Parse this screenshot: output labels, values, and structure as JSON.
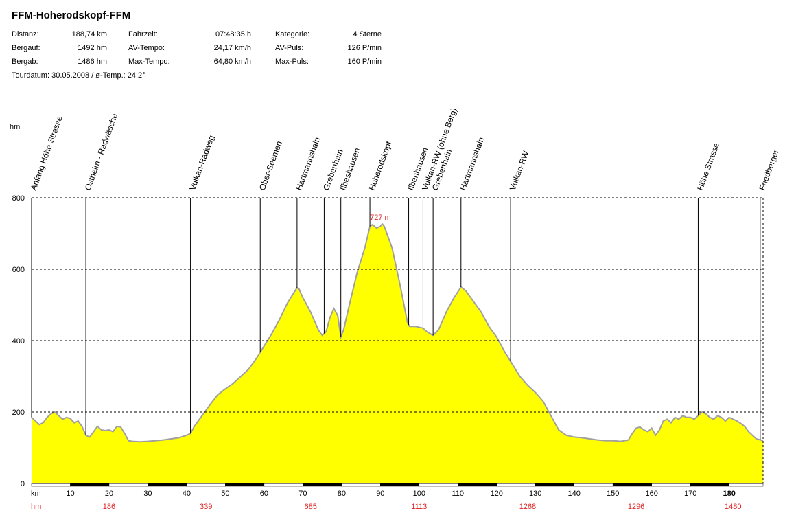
{
  "title": "FFM-Hoherodskopf-FFM",
  "stats": [
    {
      "label": "Distanz:",
      "value": "188,74 km"
    },
    {
      "label": "Bergauf:",
      "value": "1492 hm"
    },
    {
      "label": "Bergab:",
      "value": "1486 hm"
    },
    {
      "label": "Fahrzeit:",
      "value": "07:48:35 h"
    },
    {
      "label": "AV-Tempo:",
      "value": "24,17 km/h"
    },
    {
      "label": "Max-Tempo:",
      "value": "64,80 km/h"
    },
    {
      "label": "Kategorie:",
      "value": "4 Sterne"
    },
    {
      "label": "AV-Puls:",
      "value": "126 P/min"
    },
    {
      "label": "Max-Puls:",
      "value": "160 P/min"
    }
  ],
  "tour_line": "Tourdatum: 30.05.2008  /  ø-Temp.: 24,2°",
  "colors": {
    "fill": "#ffff00",
    "outline": "#a0a0a0",
    "accent": "#e02020",
    "axis": "#000000"
  },
  "chart_data": {
    "type": "area",
    "ylabel": "hm",
    "xlabel": "km",
    "xlim": [
      0,
      188.74
    ],
    "ylim": [
      0,
      800
    ],
    "y_ticks": [
      0,
      200,
      400,
      600,
      800
    ],
    "x_ticks": [
      10,
      20,
      30,
      40,
      50,
      60,
      70,
      80,
      90,
      100,
      110,
      120,
      130,
      140,
      150,
      160,
      170,
      180
    ],
    "x_tick_labels": [
      "10",
      "20",
      "30",
      "40",
      "50",
      "60",
      "70",
      "80",
      "90",
      "100",
      "110",
      "120",
      "130",
      "140",
      "150",
      "160",
      "170",
      "180"
    ],
    "x_bold_label": "180",
    "grid": "horizontal-dashed",
    "cumulative_ascent": [
      {
        "km": 20,
        "label": "186"
      },
      {
        "km": 45,
        "label": "339"
      },
      {
        "km": 72,
        "label": "685"
      },
      {
        "km": 100,
        "label": "1113"
      },
      {
        "km": 128,
        "label": "1268"
      },
      {
        "km": 156,
        "label": "1296"
      },
      {
        "km": 181,
        "label": "1480"
      }
    ],
    "max_label": {
      "km": 90.5,
      "elev": 727,
      "text": "727 m"
    },
    "landmarks": [
      {
        "km": 0,
        "name": "Anfang Höhe Strasse"
      },
      {
        "km": 14,
        "name": "Ostheim - Radwäsche"
      },
      {
        "km": 41,
        "name": "Vulkan-Radweg"
      },
      {
        "km": 59,
        "name": "Ober-Seemen"
      },
      {
        "km": 68.5,
        "name": "Hartmannshain"
      },
      {
        "km": 75.5,
        "name": "Grebenhain"
      },
      {
        "km": 79.8,
        "name": "Ilbeshausen"
      },
      {
        "km": 87.3,
        "name": "Hoherodskopf"
      },
      {
        "km": 97.3,
        "name": "Ilbenhausen"
      },
      {
        "km": 101,
        "name": "Vulkan-RW (ohne Berg)"
      },
      {
        "km": 103.6,
        "name": "Grebenhain"
      },
      {
        "km": 110.8,
        "name": "Hartmannshain"
      },
      {
        "km": 123.6,
        "name": "Vulkan-RW"
      },
      {
        "km": 172,
        "name": "Höhe Strasse"
      },
      {
        "km": 188,
        "name": "Friedberger"
      }
    ],
    "profile": [
      [
        0,
        185
      ],
      [
        1,
        175
      ],
      [
        2,
        165
      ],
      [
        3,
        170
      ],
      [
        4,
        185
      ],
      [
        5,
        195
      ],
      [
        6,
        200
      ],
      [
        7,
        190
      ],
      [
        8,
        180
      ],
      [
        9,
        185
      ],
      [
        10,
        182
      ],
      [
        11,
        170
      ],
      [
        12,
        175
      ],
      [
        13,
        160
      ],
      [
        14,
        135
      ],
      [
        15,
        130
      ],
      [
        16,
        145
      ],
      [
        17,
        160
      ],
      [
        18,
        150
      ],
      [
        19,
        148
      ],
      [
        20,
        150
      ],
      [
        21,
        145
      ],
      [
        22,
        160
      ],
      [
        23,
        158
      ],
      [
        24,
        140
      ],
      [
        25,
        120
      ],
      [
        26,
        118
      ],
      [
        28,
        117
      ],
      [
        30,
        118
      ],
      [
        32,
        120
      ],
      [
        34,
        122
      ],
      [
        36,
        125
      ],
      [
        38,
        128
      ],
      [
        40,
        135
      ],
      [
        41,
        140
      ],
      [
        42,
        160
      ],
      [
        44,
        190
      ],
      [
        46,
        220
      ],
      [
        48,
        248
      ],
      [
        50,
        265
      ],
      [
        52,
        280
      ],
      [
        54,
        300
      ],
      [
        56,
        320
      ],
      [
        58,
        350
      ],
      [
        60,
        385
      ],
      [
        62,
        420
      ],
      [
        64,
        460
      ],
      [
        66,
        505
      ],
      [
        68,
        540
      ],
      [
        68.5,
        548
      ],
      [
        69,
        545
      ],
      [
        70,
        520
      ],
      [
        72,
        480
      ],
      [
        74,
        430
      ],
      [
        75,
        415
      ],
      [
        76,
        425
      ],
      [
        77,
        465
      ],
      [
        78,
        490
      ],
      [
        79,
        470
      ],
      [
        79.8,
        410
      ],
      [
        80.5,
        430
      ],
      [
        82,
        500
      ],
      [
        84,
        590
      ],
      [
        86,
        660
      ],
      [
        87.3,
        720
      ],
      [
        88,
        725
      ],
      [
        89,
        715
      ],
      [
        90,
        720
      ],
      [
        90.5,
        727
      ],
      [
        91,
        720
      ],
      [
        93,
        660
      ],
      [
        95,
        560
      ],
      [
        97,
        450
      ],
      [
        97.5,
        440
      ],
      [
        99,
        440
      ],
      [
        101,
        435
      ],
      [
        102,
        425
      ],
      [
        103.6,
        415
      ],
      [
        105,
        430
      ],
      [
        107,
        480
      ],
      [
        109,
        520
      ],
      [
        110.8,
        550
      ],
      [
        112,
        540
      ],
      [
        114,
        510
      ],
      [
        116,
        480
      ],
      [
        118,
        440
      ],
      [
        120,
        410
      ],
      [
        122,
        370
      ],
      [
        124,
        335
      ],
      [
        126,
        300
      ],
      [
        128,
        275
      ],
      [
        130,
        255
      ],
      [
        132,
        230
      ],
      [
        134,
        190
      ],
      [
        136,
        150
      ],
      [
        138,
        135
      ],
      [
        140,
        130
      ],
      [
        142,
        128
      ],
      [
        144,
        125
      ],
      [
        146,
        122
      ],
      [
        148,
        120
      ],
      [
        150,
        120
      ],
      [
        152,
        118
      ],
      [
        154,
        122
      ],
      [
        155,
        140
      ],
      [
        156,
        155
      ],
      [
        157,
        158
      ],
      [
        158,
        150
      ],
      [
        159,
        145
      ],
      [
        160,
        155
      ],
      [
        161,
        135
      ],
      [
        162,
        150
      ],
      [
        163,
        175
      ],
      [
        164,
        180
      ],
      [
        165,
        170
      ],
      [
        166,
        185
      ],
      [
        167,
        180
      ],
      [
        168,
        190
      ],
      [
        169,
        185
      ],
      [
        170,
        185
      ],
      [
        171,
        180
      ],
      [
        172,
        190
      ],
      [
        173,
        200
      ],
      [
        174,
        195
      ],
      [
        175,
        185
      ],
      [
        176,
        180
      ],
      [
        177,
        190
      ],
      [
        178,
        185
      ],
      [
        179,
        175
      ],
      [
        180,
        185
      ],
      [
        181,
        180
      ],
      [
        182,
        175
      ],
      [
        183,
        168
      ],
      [
        184,
        160
      ],
      [
        185,
        145
      ],
      [
        186,
        135
      ],
      [
        187,
        125
      ],
      [
        188.74,
        120
      ]
    ]
  }
}
